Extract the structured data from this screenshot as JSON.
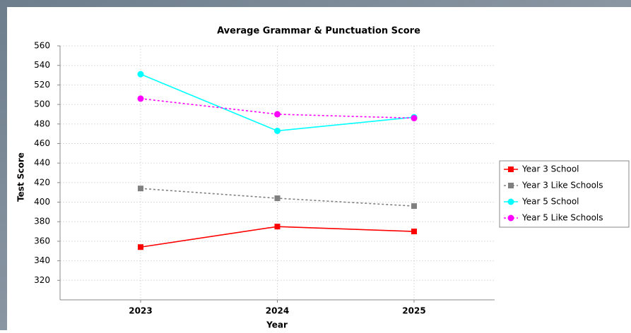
{
  "chart_data": {
    "type": "line",
    "title": "Average Grammar & Punctuation Score",
    "x_label": "Year",
    "y_label": "Test Score",
    "categories": [
      "2023",
      "2024",
      "2025"
    ],
    "series": [
      {
        "name": "Year 3 School",
        "color": "#ff0000",
        "marker": "square",
        "dashed": false,
        "values": [
          354,
          375,
          370
        ]
      },
      {
        "name": "Year 3 Like Schools",
        "color": "#808080",
        "marker": "square",
        "dashed": true,
        "values": [
          414,
          404,
          396
        ]
      },
      {
        "name": "Year 5 School",
        "color": "#00ffff",
        "marker": "circle",
        "dashed": false,
        "values": [
          531,
          473,
          487
        ]
      },
      {
        "name": "Year 5 Like Schools",
        "color": "#ff00ff",
        "marker": "circle",
        "dashed": true,
        "values": [
          506,
          490,
          486
        ]
      }
    ],
    "ylim": [
      300,
      560
    ],
    "yticks": [
      320,
      340,
      360,
      380,
      400,
      420,
      440,
      460,
      480,
      500,
      520,
      540,
      560
    ],
    "grid": true,
    "legend": "right"
  }
}
